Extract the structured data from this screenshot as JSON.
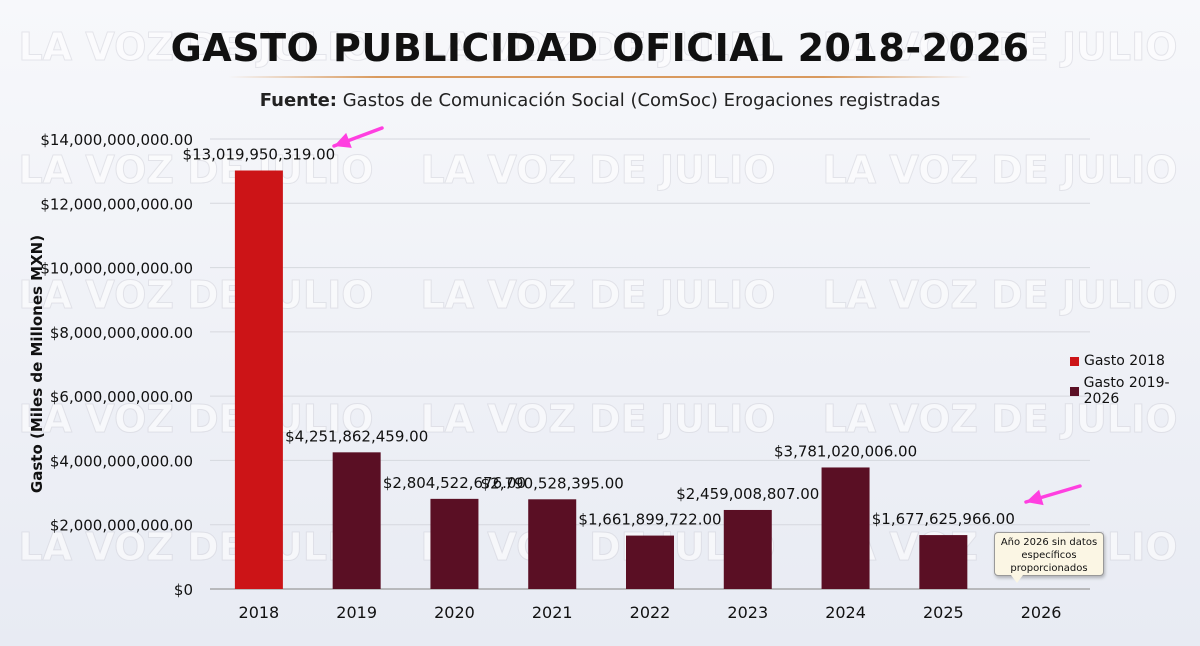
{
  "header": {
    "title": "GASTO PUBLICIDAD OFICIAL 2018-2026",
    "subtitle_bold": "Fuente:",
    "subtitle_rest": " Gastos de Comunicación Social (ComSoc) Erogaciones registradas"
  },
  "watermark": "LA VOZ DE JULIO",
  "callout": {
    "text": "Año 2026 sin datos específicos proporcionados"
  },
  "colors": {
    "gasto_2018": "#cc1417",
    "gasto_2019_2026": "#5a0f24",
    "annotation_arrow": "#ff3fe0"
  },
  "chart_data": {
    "type": "bar",
    "title": "GASTO PUBLICIDAD OFICIAL 2018-2026",
    "ylabel": "Gasto (Miles de Millones MXN)",
    "xlabel": "",
    "categories": [
      "2018",
      "2019",
      "2020",
      "2021",
      "2022",
      "2023",
      "2024",
      "2025",
      "2026"
    ],
    "values": [
      13019950319,
      4251862459,
      2804522676,
      2790528395,
      1661899722,
      2459008807,
      3781020006,
      1677625966,
      null
    ],
    "value_labels": [
      "$13,019,950,319.00",
      "$4,251,862,459.00",
      "$2,804,522,676.00",
      "$2,790,528,395.00",
      "$1,661,899,722.00",
      "$2,459,008,807.00",
      "$3,781,020,006.00",
      "$1,677,625,966.00",
      ""
    ],
    "series_index": [
      0,
      1,
      1,
      1,
      1,
      1,
      1,
      1,
      1
    ],
    "series": [
      {
        "name": "Gasto 2018",
        "color": "#cc1417"
      },
      {
        "name": "Gasto 2019-2026",
        "color": "#5a0f24"
      }
    ],
    "ylim": [
      0,
      14000000000
    ],
    "yticks": [
      0,
      2000000000,
      4000000000,
      6000000000,
      8000000000,
      10000000000,
      12000000000,
      14000000000
    ],
    "ytick_labels": [
      "$0",
      "$2,000,000,000.00",
      "$4,000,000,000.00",
      "$6,000,000,000.00",
      "$8,000,000,000.00",
      "$10,000,000,000.00",
      "$12,000,000,000.00",
      "$14,000,000,000.00"
    ],
    "grid": true,
    "legend": "right"
  }
}
